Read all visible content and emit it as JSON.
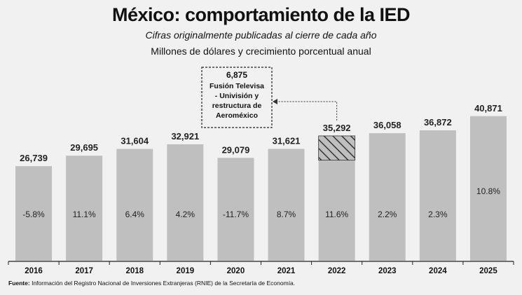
{
  "title": "México: comportamiento de la IED",
  "subtitle": "Cifras originalmente publicadas al cierre de cada año",
  "units": "Millones de dólares y crecimiento porcentual anual",
  "source": {
    "label": "Fuente:",
    "text": "Información del Registro Nacional de Inversiones Extranjeras (RNIE) de la Secretaría de Economía."
  },
  "annotation": {
    "value": "6,875",
    "lines": [
      "Fusión Televisa",
      "- Univisión y",
      "restructura de",
      "Aeroméxico"
    ],
    "target_year": "2022"
  },
  "chart_data": {
    "type": "bar",
    "categories": [
      "2016",
      "2017",
      "2018",
      "2019",
      "2020",
      "2021",
      "2022",
      "2023",
      "2024",
      "2025"
    ],
    "values": [
      26739,
      29695,
      31604,
      32921,
      29079,
      31621,
      35292,
      36058,
      36872,
      40871
    ],
    "value_labels": [
      "26,739",
      "29,695",
      "31,604",
      "32,921",
      "29,079",
      "31,621",
      "35,292",
      "36,058",
      "36,872",
      "40,871"
    ],
    "growth_labels": [
      "-5.8%",
      "11.1%",
      "6.4%",
      "4.2%",
      "-11.7%",
      "8.7%",
      "11.6%",
      "2.2%",
      "2.3%",
      "10.8%"
    ],
    "hatched_segment": {
      "category": "2022",
      "value": 6875
    },
    "ylim": [
      0,
      44000
    ],
    "grid": false,
    "colors": {
      "bar": "#bfbfbf",
      "hatch": "#333333",
      "background": "#f1f1f1"
    }
  }
}
